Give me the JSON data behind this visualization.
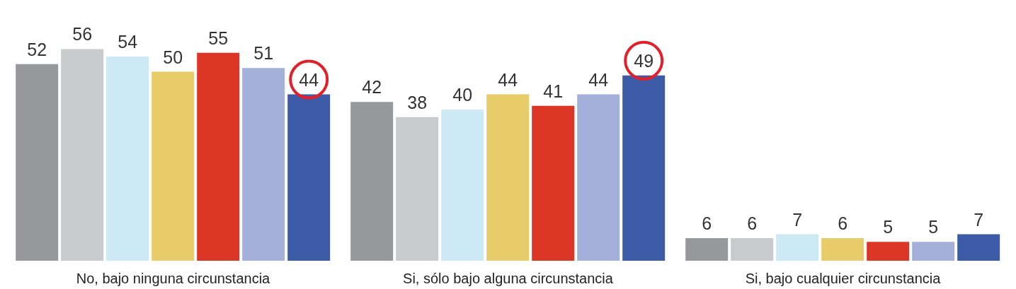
{
  "chart_data": {
    "type": "bar",
    "categories": [
      "No, bajo ninguna circunstancia",
      "Si, sólo bajo alguna circunstancia",
      "Si, bajo cualquier circunstancia"
    ],
    "series": [
      {
        "color": "#97989c",
        "values": [
          52,
          42,
          6
        ]
      },
      {
        "color": "#c9cacc",
        "values": [
          56,
          38,
          6
        ]
      },
      {
        "color": "#cde9f5",
        "values": [
          54,
          40,
          7
        ]
      },
      {
        "color": "#e8cc6a",
        "values": [
          50,
          44,
          6
        ]
      },
      {
        "color": "#dc3726",
        "values": [
          55,
          41,
          5
        ]
      },
      {
        "color": "#a4b0d9",
        "values": [
          51,
          44,
          5
        ]
      },
      {
        "color": "#3c5aa6",
        "values": [
          44,
          49,
          7
        ]
      }
    ],
    "data_labels": true,
    "grid": false,
    "legend": false
  }
}
